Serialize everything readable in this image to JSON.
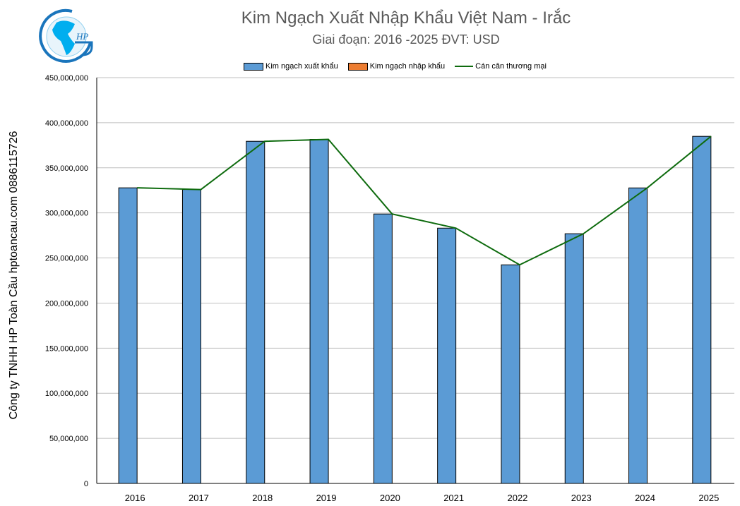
{
  "logo_text": "HP",
  "chart_data": {
    "type": "bar",
    "title": "Kim Ngạch Xuất Nhập Khẩu Việt Nam - Irắc",
    "subtitle": "Giai đoạn: 2016 -2025  ĐVT: USD",
    "ylabel": "Công ty TNHH HP Toàn Cầu hptoancau.com 0886115726",
    "categories": [
      "2016",
      "2017",
      "2018",
      "2019",
      "2020",
      "2021",
      "2022",
      "2023",
      "2024",
      "2025"
    ],
    "ylim": [
      0,
      450000000
    ],
    "yticks": [
      "0",
      "50,000,000",
      "100,000,000",
      "150,000,000",
      "200,000,000",
      "250,000,000",
      "300,000,000",
      "350,000,000",
      "400,000,000",
      "450,000,000"
    ],
    "grid": true,
    "legend_position": "top",
    "series": [
      {
        "name": "Kim ngạch xuất khẩu",
        "type": "bar",
        "color": "#5b9bd5",
        "values": [
          327800000,
          325900000,
          379400000,
          381500000,
          298800000,
          283100000,
          242400000,
          276900000,
          327700000,
          384900000
        ]
      },
      {
        "name": "Kim ngạch nhập khẩu",
        "type": "bar",
        "color": "#ed7d31",
        "values": [
          0,
          0,
          0,
          0,
          0,
          0,
          0,
          0,
          0,
          0
        ]
      },
      {
        "name": "Cán cân thương mại",
        "type": "line",
        "color": "#0e6b0e",
        "values": [
          327800000,
          325900000,
          379400000,
          381500000,
          298800000,
          283100000,
          242400000,
          276900000,
          327700000,
          384900000
        ]
      }
    ]
  }
}
